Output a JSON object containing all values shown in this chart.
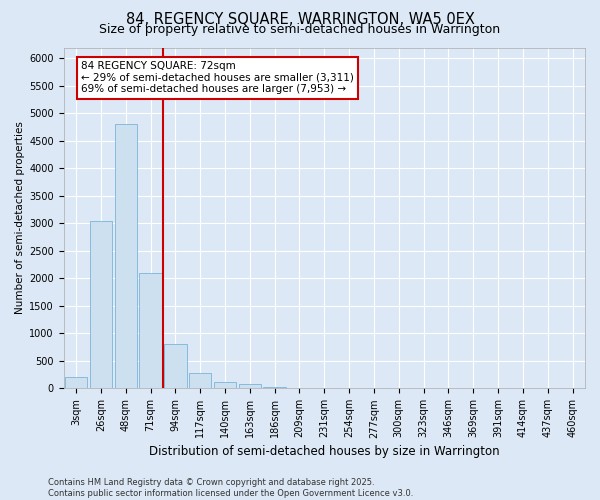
{
  "title": "84, REGENCY SQUARE, WARRINGTON, WA5 0EX",
  "subtitle": "Size of property relative to semi-detached houses in Warrington",
  "xlabel": "Distribution of semi-detached houses by size in Warrington",
  "ylabel": "Number of semi-detached properties",
  "categories": [
    "3sqm",
    "26sqm",
    "48sqm",
    "71sqm",
    "94sqm",
    "117sqm",
    "140sqm",
    "163sqm",
    "186sqm",
    "209sqm",
    "231sqm",
    "254sqm",
    "277sqm",
    "300sqm",
    "323sqm",
    "346sqm",
    "369sqm",
    "391sqm",
    "414sqm",
    "437sqm",
    "460sqm"
  ],
  "values": [
    200,
    3050,
    4800,
    2100,
    800,
    270,
    120,
    70,
    30,
    10,
    5,
    5,
    2,
    1,
    0,
    0,
    0,
    0,
    0,
    0,
    0
  ],
  "bar_color": "#cce0f0",
  "bar_edge_color": "#6aaad4",
  "vline_x_index": 3,
  "vline_color": "#cc0000",
  "annotation_text": "84 REGENCY SQUARE: 72sqm\n← 29% of semi-detached houses are smaller (3,311)\n69% of semi-detached houses are larger (7,953) →",
  "annotation_box_color": "#cc0000",
  "annotation_fill": "#ffffff",
  "ylim": [
    0,
    6200
  ],
  "yticks": [
    0,
    500,
    1000,
    1500,
    2000,
    2500,
    3000,
    3500,
    4000,
    4500,
    5000,
    5500,
    6000
  ],
  "footer_line1": "Contains HM Land Registry data © Crown copyright and database right 2025.",
  "footer_line2": "Contains public sector information licensed under the Open Government Licence v3.0.",
  "background_color": "#dce8f5",
  "plot_bg_color": "#dce8f5",
  "grid_color": "#ffffff",
  "title_fontsize": 10.5,
  "subtitle_fontsize": 9,
  "tick_fontsize": 7,
  "ylabel_fontsize": 7.5,
  "xlabel_fontsize": 8.5,
  "footer_fontsize": 6,
  "annotation_fontsize": 7.5
}
